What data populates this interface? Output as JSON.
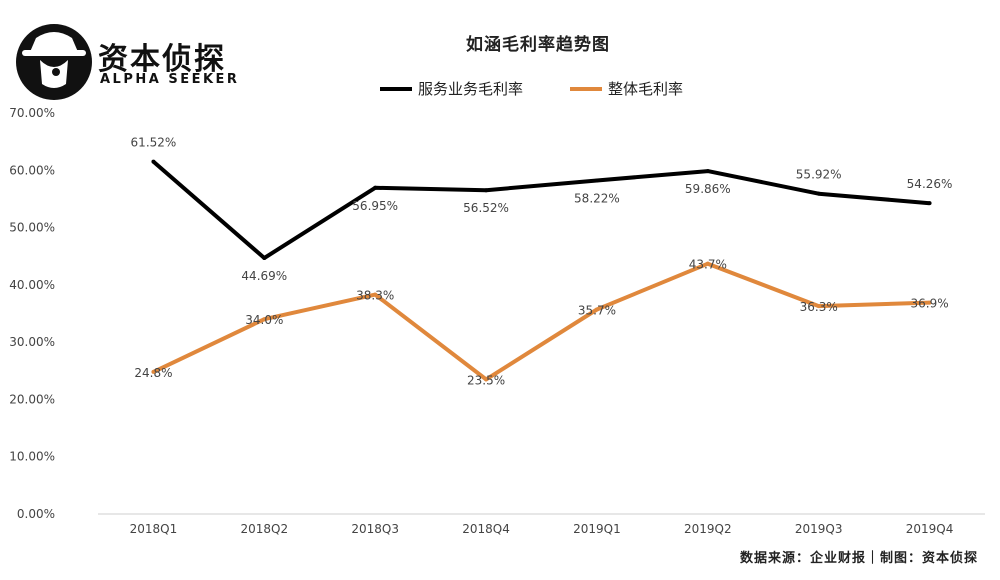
{
  "brand": {
    "name": "资本侦探",
    "tagline": "ALPHA SEEKER"
  },
  "footer": {
    "source": "数据来源：企业财报｜制图：资本侦探"
  },
  "chart_data": {
    "type": "line",
    "title": "如涵毛利率趋势图",
    "categories": [
      "2018Q1",
      "2018Q2",
      "2018Q3",
      "2018Q4",
      "2019Q1",
      "2019Q2",
      "2019Q3",
      "2019Q4"
    ],
    "ylim": [
      0,
      70
    ],
    "yticks": [
      "0.00%",
      "10.00%",
      "20.00%",
      "30.00%",
      "40.00%",
      "50.00%",
      "60.00%",
      "70.00%"
    ],
    "legend_position": "top-center",
    "series": [
      {
        "name": "服务业务毛利率",
        "color": "#000000",
        "values": [
          61.52,
          44.69,
          56.95,
          56.52,
          58.22,
          59.86,
          55.92,
          54.26
        ],
        "labels": [
          "61.52%",
          "44.69%",
          "56.95%",
          "56.52%",
          "58.22%",
          "59.86%",
          "55.92%",
          "54.26%"
        ]
      },
      {
        "name": "整体毛利率",
        "color": "#e0883c",
        "values": [
          24.8,
          34.0,
          38.3,
          23.5,
          35.7,
          43.7,
          36.3,
          36.9
        ],
        "labels": [
          "24.8%",
          "34.0%",
          "38.3%",
          "23.5%",
          "35.7%",
          "43.7%",
          "36.3%",
          "36.9%"
        ]
      }
    ]
  }
}
